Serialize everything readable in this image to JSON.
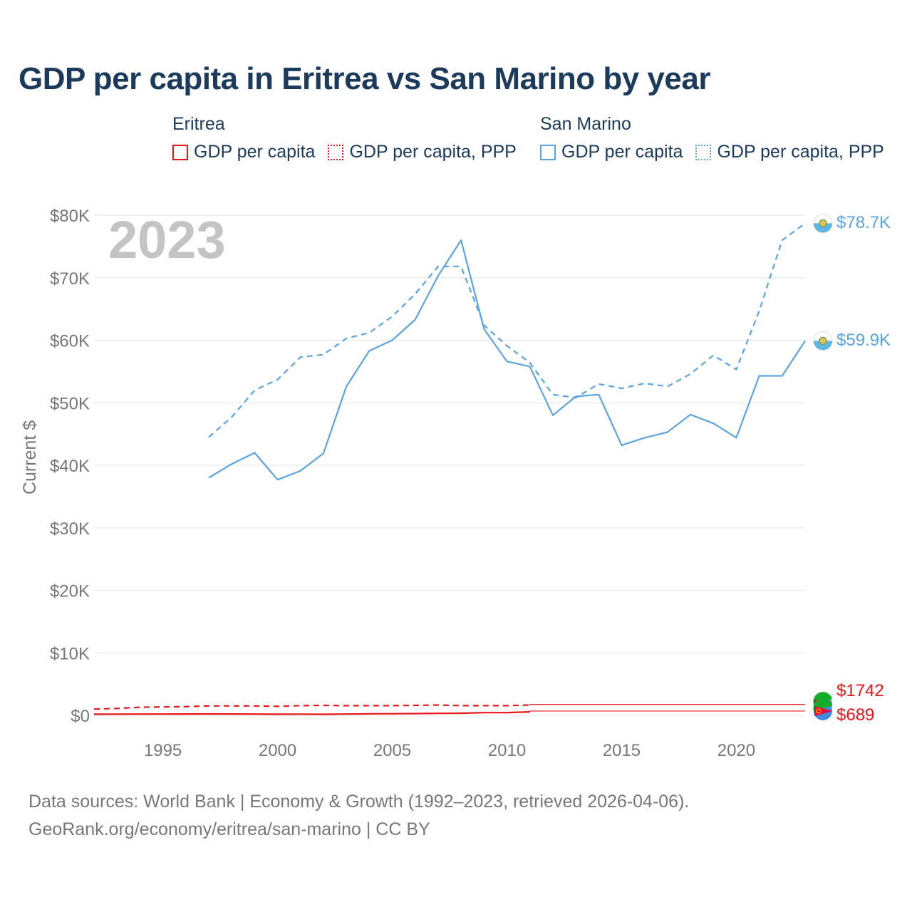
{
  "title": "GDP per capita in Eritrea vs San Marino by year",
  "legend": {
    "groups": [
      {
        "country": "Eritrea",
        "items": [
          "GDP per capita",
          "GDP per capita, PPP"
        ],
        "color": "#e8161b"
      },
      {
        "country": "San Marino",
        "items": [
          "GDP per capita",
          "GDP per capita, PPP"
        ],
        "color": "#5ba3e3"
      }
    ]
  },
  "year_label": "2023",
  "end_labels": {
    "sm_ppp": "$78.7K",
    "sm_gdp": "$59.9K",
    "er_ppp": "$1742",
    "er_gdp": "$689"
  },
  "footer": {
    "line1": "Data sources: World Bank | Economy & Growth (1992–2023, retrieved 2026-04-06).",
    "line2": "GeoRank.org/economy/eritrea/san-marino | CC BY"
  },
  "colors": {
    "eritrea": "#e8161b",
    "san_marino": "#5ba3e3",
    "text": "#1b3a5c",
    "axis_text": "#777777",
    "grid": "#e6e6e6"
  },
  "chart_data": {
    "type": "line",
    "title": "GDP per capita in Eritrea vs San Marino by year",
    "xlabel": "",
    "ylabel": "Current $",
    "xlim": [
      1992,
      2023
    ],
    "ylim": [
      0,
      80000
    ],
    "x_ticks": [
      1995,
      2000,
      2005,
      2010,
      2015,
      2020
    ],
    "y_ticks": [
      0,
      10000,
      20000,
      30000,
      40000,
      50000,
      60000,
      70000,
      80000
    ],
    "y_tick_labels": [
      "$0",
      "$10K",
      "$20K",
      "$30K",
      "$40K",
      "$50K",
      "$60K",
      "$70K",
      "$80K"
    ],
    "series": [
      {
        "name": "San Marino GDP per capita",
        "style": "solid",
        "color": "#5ba3e3",
        "x": [
          1997,
          1998,
          1999,
          2000,
          2001,
          2002,
          2003,
          2004,
          2005,
          2006,
          2007,
          2008,
          2009,
          2010,
          2011,
          2012,
          2013,
          2014,
          2015,
          2016,
          2017,
          2018,
          2019,
          2020,
          2021,
          2022,
          2023
        ],
        "values": [
          38000,
          40200,
          42000,
          37700,
          39100,
          41900,
          52600,
          58300,
          60000,
          63300,
          70300,
          76000,
          61800,
          56600,
          55800,
          48000,
          51000,
          51300,
          43200,
          44400,
          45300,
          48100,
          46700,
          44400,
          54300,
          54300,
          59900
        ]
      },
      {
        "name": "San Marino GDP per capita, PPP",
        "style": "dashed",
        "color": "#5ba3e3",
        "x": [
          1997,
          1998,
          1999,
          2000,
          2001,
          2002,
          2003,
          2004,
          2005,
          2006,
          2007,
          2008,
          2009,
          2010,
          2011,
          2012,
          2013,
          2014,
          2015,
          2016,
          2017,
          2018,
          2019,
          2020,
          2021,
          2022,
          2023
        ],
        "values": [
          44500,
          47700,
          52000,
          53700,
          57300,
          57700,
          60300,
          61200,
          63800,
          67400,
          71800,
          71800,
          62400,
          59100,
          56400,
          51300,
          50800,
          53000,
          52300,
          53100,
          52600,
          54600,
          57600,
          55300,
          64700,
          76000,
          78700
        ]
      },
      {
        "name": "Eritrea GDP per capita",
        "style": "solid",
        "color": "#e8161b",
        "x": [
          1992,
          1993,
          1994,
          1995,
          1996,
          1997,
          1998,
          1999,
          2000,
          2001,
          2002,
          2003,
          2004,
          2005,
          2006,
          2007,
          2008,
          2009,
          2010,
          2011
        ],
        "values": [
          180,
          190,
          200,
          210,
          220,
          230,
          220,
          200,
          180,
          190,
          170,
          200,
          250,
          260,
          280,
          320,
          340,
          430,
          450,
          560
        ]
      },
      {
        "name": "Eritrea GDP per capita, PPP",
        "style": "dashed",
        "color": "#e8161b",
        "x": [
          1992,
          1993,
          1994,
          1995,
          1996,
          1997,
          1998,
          1999,
          2000,
          2001,
          2002,
          2003,
          2004,
          2005,
          2006,
          2007,
          2008,
          2009,
          2010,
          2011
        ],
        "values": [
          1000,
          1100,
          1300,
          1350,
          1400,
          1500,
          1500,
          1500,
          1450,
          1550,
          1600,
          1550,
          1550,
          1550,
          1600,
          1650,
          1550,
          1550,
          1550,
          1650
        ]
      }
    ],
    "end_values": {
      "sm_ppp": 78700,
      "sm_gdp": 59900,
      "er_ppp": 1742,
      "er_gdp": 689
    }
  }
}
